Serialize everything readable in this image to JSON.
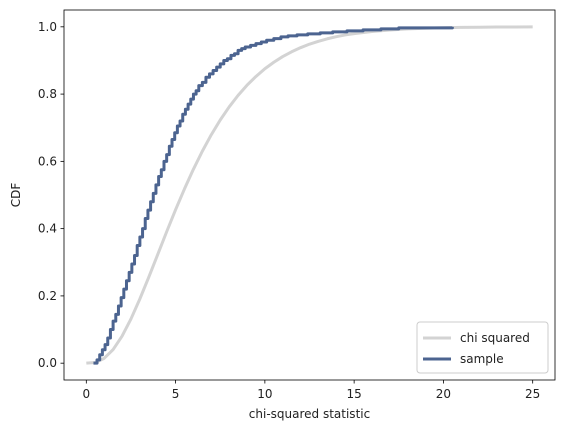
{
  "chart_data": {
    "type": "line",
    "title": "",
    "xlabel": "chi-squared statistic",
    "ylabel": "CDF",
    "xlim": [
      -1.25,
      26.25
    ],
    "ylim": [
      -0.05,
      1.05
    ],
    "xticks": [
      0,
      5,
      10,
      15,
      20,
      25
    ],
    "yticks": [
      0.0,
      0.2,
      0.4,
      0.6,
      0.8,
      1.0
    ],
    "xtick_labels": [
      "0",
      "5",
      "10",
      "15",
      "20",
      "25"
    ],
    "ytick_labels": [
      "0.0",
      "0.2",
      "0.4",
      "0.6",
      "0.8",
      "1.0"
    ],
    "grid": false,
    "legend_position": "bottom-right",
    "series": [
      {
        "name": "chi squared",
        "color": "#d3d3d3",
        "style": "smooth",
        "x": [
          0,
          0.5,
          1,
          1.5,
          2,
          2.5,
          3,
          3.5,
          4,
          4.5,
          5,
          5.5,
          6,
          6.5,
          7,
          7.5,
          8,
          8.5,
          9,
          9.5,
          10,
          10.5,
          11,
          11.5,
          12,
          12.5,
          13,
          13.5,
          14,
          14.5,
          15,
          16,
          17,
          18,
          19,
          20,
          21,
          22,
          23,
          24,
          25
        ],
        "y": [
          0.0,
          0.0021,
          0.0144,
          0.0405,
          0.0803,
          0.1315,
          0.1912,
          0.256,
          0.3233,
          0.3907,
          0.4562,
          0.5185,
          0.5768,
          0.6304,
          0.6792,
          0.7229,
          0.7619,
          0.7962,
          0.8264,
          0.8524,
          0.8753,
          0.8946,
          0.9116,
          0.9258,
          0.938,
          0.9485,
          0.957,
          0.9645,
          0.9707,
          0.9759,
          0.9797,
          0.9862,
          0.9906,
          0.9938,
          0.9959,
          0.9972,
          0.9982,
          0.9988,
          0.9993,
          0.9995,
          0.9997
        ]
      },
      {
        "name": "sample",
        "color": "#4c6490",
        "style": "step",
        "x": [
          0.4,
          0.6,
          0.75,
          0.9,
          1.05,
          1.2,
          1.35,
          1.5,
          1.65,
          1.8,
          1.95,
          2.1,
          2.25,
          2.4,
          2.55,
          2.7,
          2.85,
          3.0,
          3.15,
          3.3,
          3.45,
          3.6,
          3.75,
          3.9,
          4.05,
          4.2,
          4.35,
          4.5,
          4.65,
          4.8,
          4.95,
          5.1,
          5.25,
          5.4,
          5.55,
          5.7,
          5.85,
          6.0,
          6.15,
          6.3,
          6.5,
          6.7,
          6.9,
          7.1,
          7.3,
          7.5,
          7.7,
          7.9,
          8.1,
          8.3,
          8.5,
          8.7,
          8.9,
          9.2,
          9.5,
          9.8,
          10.1,
          10.5,
          10.9,
          11.3,
          11.8,
          12.4,
          13.1,
          13.8,
          14.6,
          15.5,
          16.5,
          17.5,
          20.5
        ],
        "y": [
          0.0,
          0.01,
          0.025,
          0.04,
          0.055,
          0.075,
          0.1,
          0.125,
          0.145,
          0.17,
          0.195,
          0.22,
          0.245,
          0.27,
          0.295,
          0.32,
          0.35,
          0.375,
          0.4,
          0.43,
          0.455,
          0.48,
          0.505,
          0.53,
          0.555,
          0.575,
          0.6,
          0.62,
          0.645,
          0.665,
          0.685,
          0.705,
          0.72,
          0.74,
          0.755,
          0.77,
          0.785,
          0.8,
          0.81,
          0.825,
          0.835,
          0.85,
          0.86,
          0.87,
          0.88,
          0.89,
          0.9,
          0.905,
          0.915,
          0.92,
          0.93,
          0.935,
          0.94,
          0.945,
          0.95,
          0.955,
          0.96,
          0.965,
          0.97,
          0.973,
          0.976,
          0.979,
          0.982,
          0.985,
          0.988,
          0.991,
          0.994,
          0.997,
          1.0
        ]
      }
    ]
  }
}
